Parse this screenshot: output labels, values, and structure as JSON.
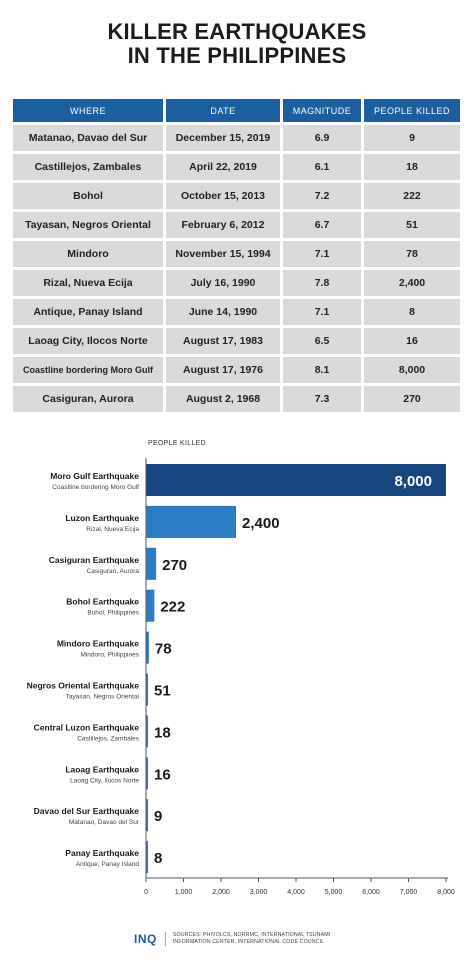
{
  "title": {
    "line1": "KILLER EARTHQUAKES",
    "line2": "IN THE PHILIPPINES"
  },
  "table": {
    "headers": [
      "WHERE",
      "DATE",
      "MAGNITUDE",
      "PEOPLE KILLED"
    ],
    "rows": [
      [
        "Matanao, Davao del Sur",
        "December 15, 2019",
        "6.9",
        "9"
      ],
      [
        "Castillejos, Zambales",
        "April 22, 2019",
        "6.1",
        "18"
      ],
      [
        "Bohol",
        "October 15, 2013",
        "7.2",
        "222"
      ],
      [
        "Tayasan, Negros Oriental",
        "February 6, 2012",
        "6.7",
        "51"
      ],
      [
        "Mindoro",
        "November 15, 1994",
        "7.1",
        "78"
      ],
      [
        "Rizal, Nueva Ecija",
        "July 16, 1990",
        "7.8",
        "2,400"
      ],
      [
        "Antique, Panay Island",
        "June 14, 1990",
        "7.1",
        "8"
      ],
      [
        "Laoag City, Ilocos Norte",
        "August 17, 1983",
        "6.5",
        "16"
      ],
      [
        "Coastline bordering Moro Gulf",
        "August 17, 1976",
        "8.1",
        "8,000"
      ],
      [
        "Casiguran, Aurora",
        "August 2, 1968",
        "7.3",
        "270"
      ]
    ]
  },
  "chart_data": {
    "type": "bar",
    "orientation": "horizontal",
    "axis_title": "PEOPLE KILLED",
    "xlim": [
      0,
      8000
    ],
    "ticks": [
      "0",
      "1,000",
      "2,000",
      "3,000",
      "4,000",
      "5,000",
      "6,000",
      "7,000",
      "8,000"
    ],
    "tick_values": [
      0,
      1000,
      2000,
      3000,
      4000,
      5000,
      6000,
      7000,
      8000
    ],
    "categories": [
      "Moro Gulf Earthquake",
      "Luzon Earthquake",
      "Casiguran Earthquake",
      "Bohol Earthquake",
      "Mindoro Earthquake",
      "Negros Oriental Earthquake",
      "Central Luzon Earthquake",
      "Laoag Earthquake",
      "Davao del Sur Earthquake",
      "Panay Earthquake"
    ],
    "sublabels": [
      "Coastline bordering Moro Gulf",
      "Rizal, Nueva Ecija",
      "Casiguran, Aurora",
      "Bohol, Philippines",
      "Mindoro, Philippines",
      "Tayasan, Negros Oriental",
      "Castillejos, Zambales",
      "Laoag City, Ilocos Norte",
      "Matanao, Davao del Sur",
      "Antique, Panay Island"
    ],
    "values": [
      8000,
      2400,
      270,
      222,
      78,
      51,
      18,
      16,
      9,
      8
    ],
    "value_labels": [
      "8,000",
      "2,400",
      "270",
      "222",
      "78",
      "51",
      "18",
      "16",
      "9",
      "8"
    ],
    "colors": {
      "top_bar": "#15467f",
      "bar": "#2a7cc5",
      "axis": "#555555"
    },
    "grid": false,
    "legend": "none"
  },
  "footer": {
    "logo": "INQ",
    "sources_line1": "SOURCES: PHIVOLCS, NORRMC, INTERNATIONAL TSUNAMI",
    "sources_line2": "INFORMATION CENTER, INTERNATIONAL CODE COUNCIL"
  }
}
